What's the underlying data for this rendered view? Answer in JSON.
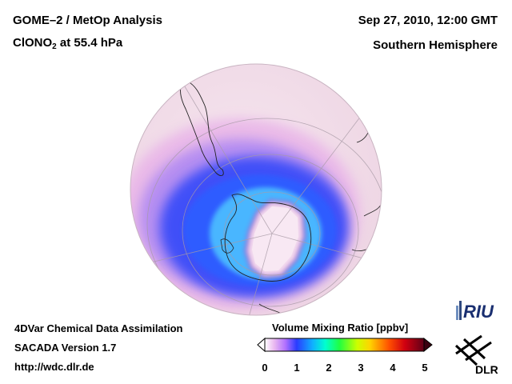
{
  "header": {
    "title": "GOME–2 / MetOp Analysis",
    "species_main": "ClONO",
    "species_sub": "2",
    "species_rest": " at 55.4 hPa",
    "datetime": "Sep 27, 2010, 12:00 GMT",
    "hemisphere": "Southern Hemisphere"
  },
  "footer": {
    "line1": "4DVar Chemical Data Assimilation",
    "line2": "SACADA Version 1.7",
    "line3": "http://wdc.dlr.de"
  },
  "colorbar": {
    "title": "Volume Mixing Ratio [ppbv]",
    "ticks": [
      "0",
      "1",
      "2",
      "3",
      "4",
      "5"
    ],
    "min": 0,
    "max": 5,
    "colors": [
      "#ffffff",
      "#e0b0f0",
      "#c060ff",
      "#3020ff",
      "#00c0ff",
      "#00ff80",
      "#80ff00",
      "#ffff00",
      "#ff9000",
      "#ff0000",
      "#a00000",
      "#500000"
    ]
  },
  "logos": {
    "riu": "RIU",
    "dlr": "DLR"
  },
  "map": {
    "projection": "orthographic",
    "hemisphere_view": "south polar",
    "colors": {
      "background": "#f3e2ec",
      "low": "#e3a8e8",
      "mid": "#6a5cf0",
      "high": "#2750ff",
      "peak": "#38b8ff"
    }
  }
}
